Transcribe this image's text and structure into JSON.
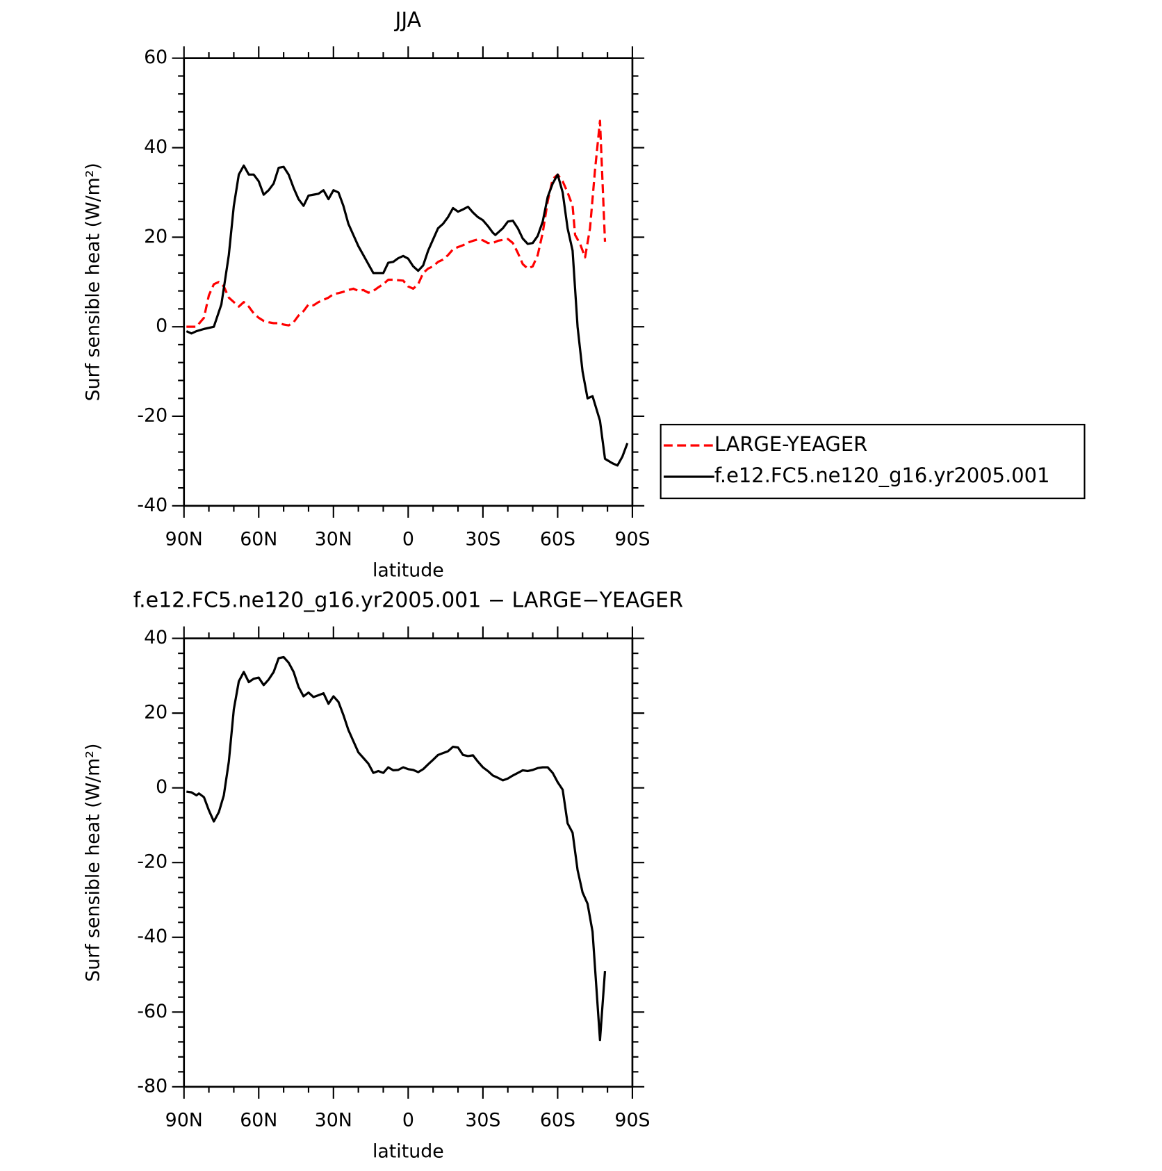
{
  "chart_data": [
    {
      "type": "line",
      "title": "JJA",
      "x_label": "latitude",
      "y_label": "Surf sensible heat (W/m²)",
      "xlim": [
        90,
        -90
      ],
      "xticks": [
        {
          "value": 90,
          "label": "90N"
        },
        {
          "value": 60,
          "label": "60N"
        },
        {
          "value": 30,
          "label": "30N"
        },
        0,
        {
          "value": -30,
          "label": "30S"
        },
        {
          "value": -60,
          "label": "60S"
        },
        {
          "value": -90,
          "label": "90S"
        }
      ],
      "ylim": [
        -40,
        60
      ],
      "yticks": [
        -40,
        -20,
        0,
        20,
        40,
        60
      ],
      "legend": "right",
      "series": [
        {
          "name": "LARGE-YEAGER",
          "color": "#ff0000",
          "style": "dashed",
          "x": [
            89,
            85,
            82,
            80,
            78,
            76,
            74,
            72,
            70,
            68,
            66,
            64,
            62,
            60,
            58,
            56,
            54,
            52,
            50,
            48,
            46,
            44,
            42,
            40,
            38,
            36,
            34,
            32,
            30,
            28,
            26,
            24,
            22,
            20,
            18,
            16,
            14,
            12,
            10,
            8,
            6,
            4,
            2,
            0,
            -2,
            -4,
            -6,
            -8,
            -10,
            -12,
            -14,
            -16,
            -18,
            -20,
            -22,
            -24,
            -26,
            -28,
            -30,
            -32,
            -34,
            -36,
            -38,
            -40,
            -42,
            -44,
            -46,
            -48,
            -50,
            -52,
            -54,
            -56,
            -58,
            -60,
            -62,
            -64,
            -66,
            -67,
            -69,
            -71,
            -73,
            -75,
            -77,
            -79
          ],
          "values": [
            0,
            0,
            2,
            7,
            9.5,
            10,
            9,
            6.5,
            5.5,
            4.5,
            5.5,
            4.5,
            3,
            2,
            1.3,
            1,
            0.8,
            0.8,
            0.5,
            0.3,
            1,
            2.5,
            3.5,
            5,
            4.8,
            5.5,
            6,
            6.5,
            7.3,
            7.5,
            7.8,
            8.2,
            8.5,
            8,
            8.2,
            7.6,
            8,
            8.8,
            9.5,
            10.5,
            10.5,
            10.4,
            10.3,
            9,
            8.5,
            9.5,
            12,
            13,
            13.5,
            14.5,
            15,
            16,
            17.3,
            17.8,
            18.2,
            18.8,
            19.2,
            19.5,
            19.3,
            18.7,
            18.7,
            19.2,
            19.4,
            19.6,
            18.7,
            16.5,
            14,
            13,
            13.5,
            16,
            21,
            28,
            33,
            34,
            32.5,
            30,
            27,
            20.5,
            18.5,
            15.5,
            22,
            35,
            46,
            19
          ]
        },
        {
          "name": "f.e12.FC5.ne120_g16.yr2005.001",
          "color": "#000000",
          "style": "solid",
          "x": [
            89,
            87,
            85,
            82,
            78,
            75,
            72,
            70,
            68,
            66,
            64,
            62,
            60,
            58,
            56,
            54,
            52,
            50,
            48,
            46,
            44,
            42,
            40,
            38,
            36,
            34,
            32,
            30,
            28,
            26,
            24,
            22,
            20,
            18,
            16,
            14,
            10,
            8,
            6,
            4,
            2,
            0,
            -2,
            -4,
            -6,
            -8,
            -10,
            -12,
            -14,
            -16,
            -18,
            -20,
            -22,
            -24,
            -26,
            -28,
            -30,
            -32,
            -34,
            -35,
            -38,
            -40,
            -42,
            -44,
            -46,
            -48,
            -50,
            -52,
            -54,
            -56,
            -58,
            -60,
            -62,
            -64,
            -66,
            -68,
            -70,
            -72,
            -74,
            -77,
            -79,
            -82,
            -84,
            -86,
            -88
          ],
          "values": [
            -1,
            -1.5,
            -1,
            -0.5,
            0,
            5,
            16,
            27,
            34,
            36,
            34,
            34,
            32.5,
            29.5,
            30.5,
            32,
            35.5,
            35.7,
            34,
            31,
            28.5,
            27,
            29.3,
            29.5,
            29.7,
            30.5,
            28.5,
            30.5,
            30,
            27,
            23,
            20.5,
            18,
            16,
            14,
            12,
            12,
            14.3,
            14.5,
            15.3,
            15.8,
            15.2,
            13.5,
            12.5,
            13.7,
            17,
            19.5,
            22,
            23,
            24.5,
            26.5,
            25.7,
            26.2,
            26.8,
            25.5,
            24.5,
            23.8,
            22.5,
            21,
            20.5,
            22,
            23.5,
            23.7,
            22,
            19.7,
            18.5,
            18.7,
            20.3,
            23.5,
            29,
            32,
            34,
            30,
            22,
            17,
            0,
            -10,
            -16,
            -15.5,
            -21,
            -29.5,
            -30.5,
            -31,
            -29,
            -26
          ]
        }
      ]
    },
    {
      "type": "line",
      "title": "f.e12.FC5.ne120_g16.yr2005.001 − LARGE−YEAGER",
      "x_label": "latitude",
      "y_label": "Surf sensible heat (W/m²)",
      "xlim": [
        90,
        -90
      ],
      "xticks": [
        {
          "value": 90,
          "label": "90N"
        },
        {
          "value": 60,
          "label": "60N"
        },
        {
          "value": 30,
          "label": "30N"
        },
        0,
        {
          "value": -30,
          "label": "30S"
        },
        {
          "value": -60,
          "label": "60S"
        },
        {
          "value": -90,
          "label": "90S"
        }
      ],
      "ylim": [
        -80,
        40
      ],
      "yticks": [
        -80,
        -60,
        -40,
        -20,
        0,
        20,
        40
      ],
      "series": [
        {
          "color": "#000000",
          "style": "solid",
          "x": [
            89,
            87,
            85,
            84,
            82,
            80,
            78,
            76,
            74,
            72,
            70,
            68,
            66,
            64,
            62,
            60,
            58,
            56,
            54,
            52,
            50,
            48,
            46,
            44,
            42,
            40,
            38,
            36,
            34,
            32,
            30,
            28,
            26,
            24,
            22,
            20,
            18,
            16,
            14,
            12,
            10,
            8,
            6,
            4,
            2,
            0,
            -2,
            -4,
            -6,
            -8,
            -10,
            -12,
            -14,
            -16,
            -18,
            -20,
            -22,
            -24,
            -26,
            -28,
            -30,
            -32,
            -34,
            -36,
            -38,
            -40,
            -42,
            -44,
            -46,
            -48,
            -50,
            -52,
            -54,
            -56,
            -58,
            -60,
            -62,
            -64,
            -66,
            -68,
            -70,
            -72,
            -74,
            -77,
            -79
          ],
          "values": [
            -1,
            -1.2,
            -2,
            -1.5,
            -2.5,
            -6,
            -9,
            -6.5,
            -2,
            7,
            21,
            28.5,
            31,
            28.3,
            29.2,
            29.5,
            27.5,
            29,
            31,
            34.7,
            35,
            33.5,
            31,
            27,
            24.5,
            25.5,
            24.3,
            24.8,
            25.3,
            22.5,
            24.5,
            23,
            19.5,
            15.5,
            12.5,
            9.5,
            8,
            6.5,
            4,
            4.5,
            4,
            5.5,
            4.7,
            4.8,
            5.5,
            5,
            4.8,
            4.2,
            5,
            6.3,
            7.5,
            8.8,
            9.3,
            9.8,
            11,
            10.8,
            8.8,
            8.5,
            8.7,
            7,
            5.5,
            4.5,
            3.3,
            2.7,
            2,
            2.5,
            3.3,
            4,
            4.7,
            4.5,
            4.8,
            5.3,
            5.5,
            5.5,
            4,
            1.5,
            -0.5,
            -9.5,
            -12,
            -22,
            -28,
            -31,
            -38.5,
            -67.5,
            -49
          ]
        }
      ]
    }
  ]
}
